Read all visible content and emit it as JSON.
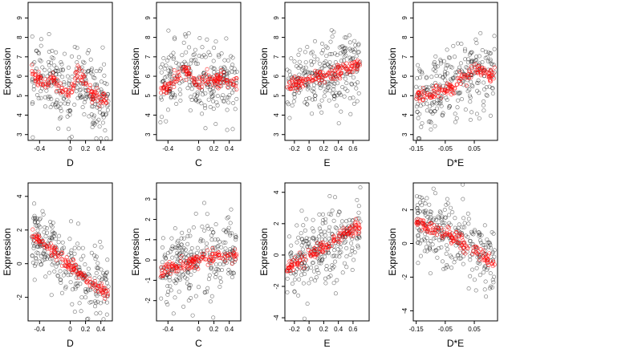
{
  "chart_data": [
    {
      "type": "scatter",
      "xlabel": "D",
      "ylabel": "Expression",
      "xlim": [
        -0.55,
        0.55
      ],
      "ylim": [
        2.7,
        9.8
      ],
      "xticks": [
        -0.4,
        0.0,
        0.2,
        0.4
      ],
      "yticks": [
        3,
        4,
        5,
        6,
        7,
        8,
        9
      ],
      "series": [
        {
          "role": "observed",
          "color": "#000000",
          "values": "scattered points, roughly 3 to 9, denser in 4.5-7"
        },
        {
          "role": "fitted",
          "color": "#ff0000",
          "x": [
            -0.5,
            -0.4,
            -0.3,
            -0.2,
            -0.1,
            0.0,
            0.1,
            0.2,
            0.3,
            0.4,
            0.5
          ],
          "y": [
            6.1,
            5.8,
            5.7,
            5.8,
            5.2,
            5.0,
            6.3,
            5.6,
            5.0,
            4.8,
            4.9
          ]
        }
      ]
    },
    {
      "type": "scatter",
      "xlabel": "C",
      "ylabel": "Expression",
      "xlim": [
        -0.55,
        0.55
      ],
      "ylim": [
        2.7,
        9.8
      ],
      "xticks": [
        -0.4,
        0.0,
        0.2,
        0.4
      ],
      "yticks": [
        3,
        4,
        5,
        6,
        7,
        8,
        9
      ],
      "series": [
        {
          "role": "observed",
          "color": "#000000"
        },
        {
          "role": "fitted",
          "color": "#ff0000",
          "x": [
            -0.5,
            -0.4,
            -0.3,
            -0.2,
            -0.1,
            0.0,
            0.1,
            0.2,
            0.3,
            0.4,
            0.5
          ],
          "y": [
            5.3,
            5.5,
            5.8,
            6.3,
            5.9,
            5.6,
            6.0,
            5.7,
            5.9,
            5.6,
            5.7
          ]
        }
      ]
    },
    {
      "type": "scatter",
      "xlabel": "E",
      "ylabel": "Expression",
      "xlim": [
        -0.33,
        0.82
      ],
      "ylim": [
        2.7,
        9.8
      ],
      "xticks": [
        -0.2,
        0.0,
        0.2,
        0.4,
        0.6
      ],
      "yticks": [
        3,
        4,
        5,
        6,
        7,
        8,
        9
      ],
      "series": [
        {
          "role": "observed",
          "color": "#000000"
        },
        {
          "role": "fitted",
          "color": "#ff0000",
          "x": [
            -0.3,
            -0.2,
            -0.1,
            0.0,
            0.1,
            0.2,
            0.3,
            0.4,
            0.5,
            0.6,
            0.7
          ],
          "y": [
            5.5,
            5.6,
            5.7,
            5.8,
            5.9,
            6.0,
            6.0,
            6.2,
            6.4,
            6.5,
            6.6
          ]
        }
      ]
    },
    {
      "type": "scatter",
      "xlabel": "D*E",
      "ylabel": "Expression",
      "xlim": [
        -0.16,
        0.13
      ],
      "ylim": [
        2.7,
        9.8
      ],
      "xticks": [
        -0.15,
        -0.05,
        0.05
      ],
      "yticks": [
        3,
        4,
        5,
        6,
        7,
        8,
        9
      ],
      "series": [
        {
          "role": "observed",
          "color": "#000000"
        },
        {
          "role": "fitted",
          "color": "#ff0000",
          "x": [
            -0.15,
            -0.1,
            -0.05,
            -0.02,
            0.0,
            0.03,
            0.05,
            0.08,
            0.1,
            0.12
          ],
          "y": [
            4.9,
            5.1,
            5.3,
            5.5,
            5.9,
            6.1,
            6.3,
            6.2,
            6.0,
            6.1
          ]
        }
      ]
    },
    {
      "type": "scatter",
      "xlabel": "D",
      "ylabel": "Expression",
      "xlim": [
        -0.55,
        0.55
      ],
      "ylim": [
        -3.4,
        4.8
      ],
      "xticks": [
        -0.4,
        0.0,
        0.2,
        0.4
      ],
      "yticks": [
        -2,
        0,
        2,
        4
      ],
      "series": [
        {
          "role": "observed",
          "color": "#000000"
        },
        {
          "role": "fitted",
          "color": "#ff0000",
          "x": [
            -0.5,
            -0.4,
            -0.3,
            -0.2,
            -0.1,
            0.0,
            0.1,
            0.2,
            0.3,
            0.4,
            0.5
          ],
          "y": [
            1.8,
            1.3,
            1.0,
            0.6,
            0.2,
            -0.1,
            -0.5,
            -0.9,
            -1.2,
            -1.5,
            -1.9
          ]
        }
      ]
    },
    {
      "type": "scatter",
      "xlabel": "C",
      "ylabel": "Expression",
      "xlim": [
        -0.55,
        0.55
      ],
      "ylim": [
        -3.0,
        3.8
      ],
      "xticks": [
        -0.4,
        0.0,
        0.2,
        0.4
      ],
      "yticks": [
        -2,
        -1,
        0,
        1,
        2,
        3
      ],
      "series": [
        {
          "role": "observed",
          "color": "#000000"
        },
        {
          "role": "fitted",
          "color": "#ff0000",
          "x": [
            -0.5,
            -0.4,
            -0.3,
            -0.2,
            -0.1,
            0.0,
            0.1,
            0.2,
            0.3,
            0.4,
            0.5
          ],
          "y": [
            -0.5,
            -0.4,
            -0.3,
            -0.2,
            -0.1,
            0.0,
            0.05,
            0.1,
            0.2,
            0.25,
            0.3
          ]
        }
      ]
    },
    {
      "type": "scatter",
      "xlabel": "E",
      "ylabel": "Expression",
      "xlim": [
        -0.33,
        0.82
      ],
      "ylim": [
        -4.2,
        4.6
      ],
      "xticks": [
        -0.2,
        0.0,
        0.2,
        0.4,
        0.6
      ],
      "yticks": [
        -4,
        -2,
        0,
        2,
        4
      ],
      "series": [
        {
          "role": "observed",
          "color": "#000000"
        },
        {
          "role": "fitted",
          "color": "#ff0000",
          "x": [
            -0.3,
            -0.2,
            -0.1,
            0.0,
            0.1,
            0.2,
            0.3,
            0.4,
            0.5,
            0.6,
            0.7
          ],
          "y": [
            -0.9,
            -0.6,
            -0.3,
            0.0,
            0.3,
            0.5,
            0.8,
            1.1,
            1.4,
            1.6,
            1.9
          ]
        }
      ]
    },
    {
      "type": "scatter",
      "xlabel": "D*E",
      "ylabel": "Expression",
      "xlim": [
        -0.16,
        0.13
      ],
      "ylim": [
        -4.6,
        3.6
      ],
      "xticks": [
        -0.15,
        -0.05,
        0.05
      ],
      "yticks": [
        -4,
        -2,
        0,
        2
      ],
      "series": [
        {
          "role": "observed",
          "color": "#000000"
        },
        {
          "role": "fitted",
          "color": "#ff0000",
          "x": [
            -0.15,
            -0.1,
            -0.05,
            -0.02,
            0.0,
            0.03,
            0.05,
            0.08,
            0.1,
            0.12
          ],
          "y": [
            1.2,
            0.9,
            0.6,
            0.3,
            0.1,
            -0.2,
            -0.4,
            -0.7,
            -1.0,
            -1.3
          ]
        }
      ]
    }
  ]
}
